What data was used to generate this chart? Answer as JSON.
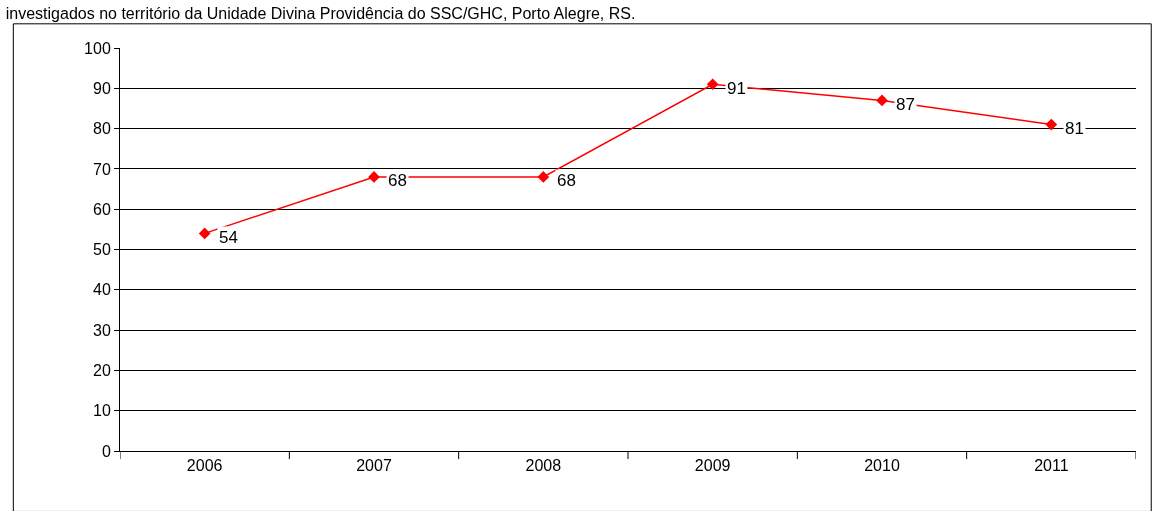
{
  "chart_data": {
    "type": "line",
    "title": "investigados no território da Unidade Divina Providência do SSC/GHC, Porto Alegre, RS.",
    "categories": [
      "2006",
      "2007",
      "2008",
      "2009",
      "2010",
      "2011"
    ],
    "series": [
      {
        "color": "#ff0000",
        "values": [
          54,
          68,
          68,
          91,
          87,
          81
        ]
      }
    ],
    "ylim": [
      0,
      100
    ],
    "yticks": [
      0,
      10,
      20,
      30,
      40,
      50,
      60,
      70,
      80,
      90,
      100
    ],
    "grid": "y",
    "marker": "diamond",
    "line_style": "solid",
    "data_labels": true,
    "legend": false
  }
}
